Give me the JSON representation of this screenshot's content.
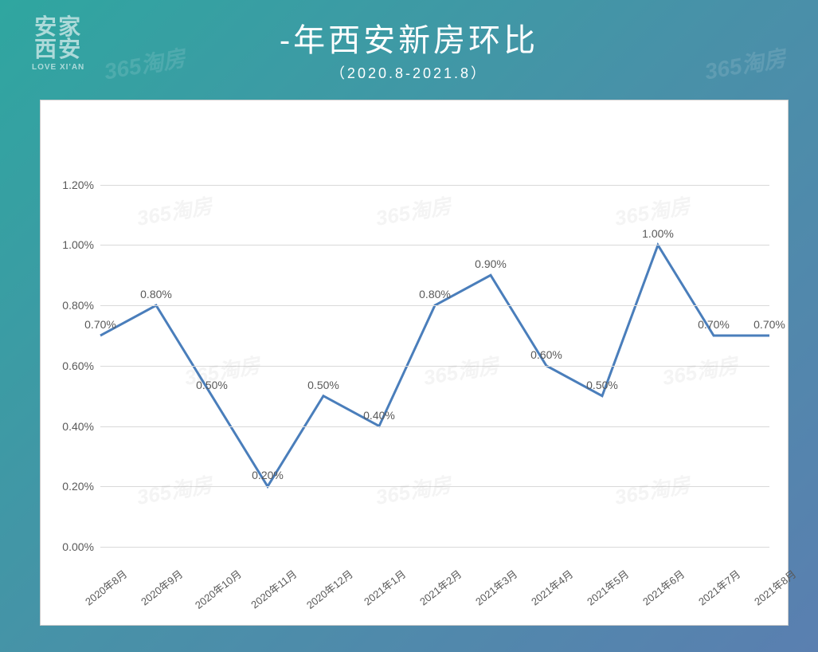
{
  "logo": {
    "line1": "安家",
    "line2": "西安",
    "en": "LOVE XI'AN"
  },
  "title": "-年西安新房环比",
  "subtitle": "（2020.8-2021.8）",
  "watermark": "365淘房",
  "chart": {
    "type": "line",
    "x_labels": [
      "2020年8月",
      "2020年9月",
      "2020年10月",
      "2020年11月",
      "2020年12月",
      "2021年1月",
      "2021年2月",
      "2021年3月",
      "2021年4月",
      "2021年5月",
      "2021年6月",
      "2021年7月",
      "2021年8月"
    ],
    "values": [
      0.7,
      0.8,
      0.5,
      0.2,
      0.5,
      0.4,
      0.8,
      0.9,
      0.6,
      0.5,
      1.0,
      0.7,
      0.7
    ],
    "data_labels": [
      "0.70%",
      "0.80%",
      "0.50%",
      "0.20%",
      "0.50%",
      "0.40%",
      "0.80%",
      "0.90%",
      "0.60%",
      "0.50%",
      "1.00%",
      "0.70%",
      "0.70%"
    ],
    "y_ticks": [
      0.0,
      0.2,
      0.4,
      0.6,
      0.8,
      1.0,
      1.2
    ],
    "y_tick_labels": [
      "0.00%",
      "0.20%",
      "0.40%",
      "0.60%",
      "0.80%",
      "1.00%",
      "1.20%"
    ],
    "ylim": [
      0.0,
      1.4
    ],
    "line_color": "#4a7ebb",
    "line_width": 3,
    "grid_color": "#d9d9d9",
    "background_color": "#ffffff",
    "label_fontsize": 14,
    "tick_fontsize": 14,
    "marker": "none"
  }
}
